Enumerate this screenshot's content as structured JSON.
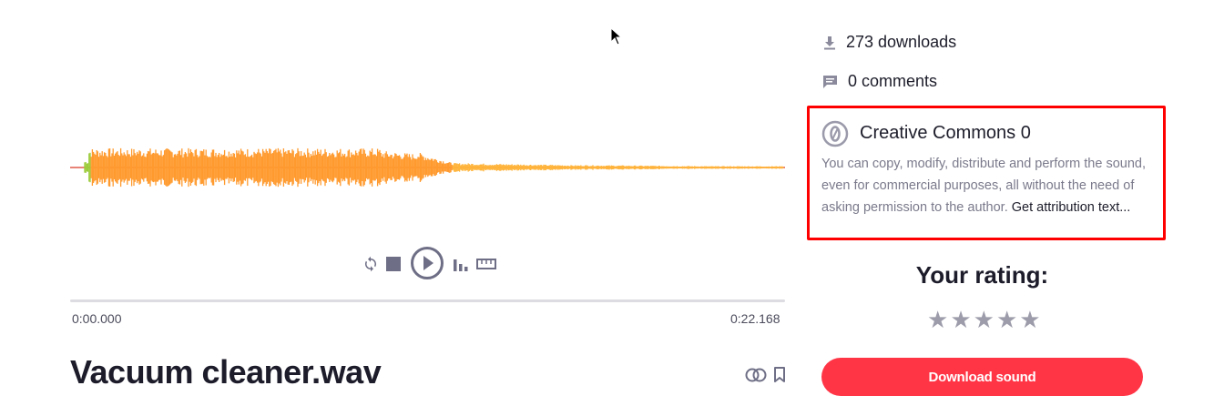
{
  "player": {
    "current_time": "0:00.000",
    "duration": "0:22.168",
    "progress": 0,
    "controls": [
      "loop-icon",
      "stop-icon",
      "play-icon",
      "spectrogram-icon",
      "ruler-icon"
    ]
  },
  "sound": {
    "title": "Vacuum cleaner.wav"
  },
  "stats": {
    "downloads": "273 downloads",
    "comments": "0 comments"
  },
  "license": {
    "title": "Creative Commons 0",
    "description": "You can copy, modify, distribute and perform the sound, even for commercial purposes, all without the need of asking permission to the author.",
    "attribution_link": "Get attribution text..."
  },
  "rating": {
    "title": "Your rating:",
    "stars": [
      "★",
      "★",
      "★",
      "★",
      "★"
    ]
  },
  "actions": {
    "download_label": "Download sound"
  },
  "colors": {
    "accent": "#ff3546",
    "waveform": "#ff9a2e",
    "highlight_box": "#ff0000"
  }
}
